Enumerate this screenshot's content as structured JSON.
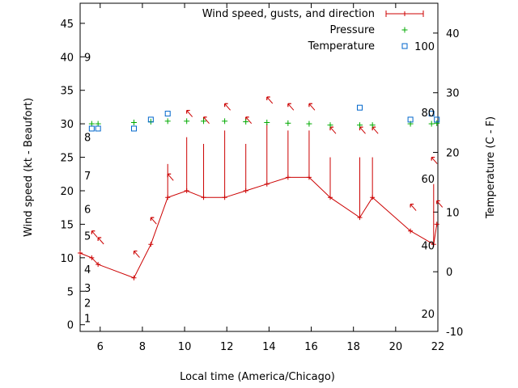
{
  "chart_data": {
    "type": "line",
    "xlabel": "Local time (America/Chicago)",
    "ylabel": "Wind speed (kt - Beaufort)",
    "y2label": "Temperature (C - F)",
    "xlim": [
      5.05,
      22
    ],
    "ylim": [
      -1,
      48
    ],
    "y2lim": [
      -10,
      45
    ],
    "xticks": [
      6,
      8,
      10,
      12,
      14,
      16,
      18,
      20,
      22
    ],
    "yticks": [
      0,
      5,
      10,
      15,
      20,
      25,
      30,
      35,
      40,
      45
    ],
    "y2ticks": [
      -10,
      0,
      10,
      20,
      30,
      40
    ],
    "beaufort_labels": [
      {
        "label": "1",
        "y": 1
      },
      {
        "label": "2",
        "y": 3.3
      },
      {
        "label": "3",
        "y": 5.5
      },
      {
        "label": "4",
        "y": 8.3
      },
      {
        "label": "5",
        "y": 13.3
      },
      {
        "label": "6",
        "y": 17.3
      },
      {
        "label": "7",
        "y": 22.3
      },
      {
        "label": "8",
        "y": 28
      },
      {
        "label": "9",
        "y": 40
      }
    ],
    "fahrenheit_labels": [
      {
        "label": "20",
        "y2": -7
      },
      {
        "label": "40",
        "y2": 4.4
      },
      {
        "label": "60",
        "y2": 15.6
      },
      {
        "label": "80",
        "y2": 26.7
      },
      {
        "label": "100",
        "y2": 37.8
      }
    ],
    "legend_position": "top-right",
    "series": [
      {
        "name": "Wind speed, gusts, and direction",
        "color": "#cc0000",
        "x": [
          5.05,
          5.6,
          5.9,
          7.6,
          8.4,
          9.2,
          10.1,
          10.9,
          11.9,
          12.9,
          13.9,
          14.9,
          15.9,
          16.9,
          18.3,
          18.9,
          20.7,
          21.8,
          21.95
        ],
        "y": [
          10.7,
          10,
          9,
          7,
          12,
          19,
          20,
          19,
          19,
          20,
          21,
          22,
          22,
          19,
          16,
          19,
          14,
          12,
          15
        ],
        "gusts": [
          null,
          null,
          null,
          null,
          null,
          24,
          28,
          27,
          29,
          27,
          30,
          29,
          29,
          25,
          25,
          25,
          null,
          21,
          null
        ],
        "direction_arrows": [
          {
            "x": 5.6,
            "y": 14
          },
          {
            "x": 5.9,
            "y": 13
          },
          {
            "x": 7.6,
            "y": 11
          },
          {
            "x": 8.4,
            "y": 16
          },
          {
            "x": 9.2,
            "y": 22.5
          },
          {
            "x": 10.1,
            "y": 32
          },
          {
            "x": 10.9,
            "y": 31
          },
          {
            "x": 11.9,
            "y": 33
          },
          {
            "x": 12.9,
            "y": 31
          },
          {
            "x": 13.9,
            "y": 34
          },
          {
            "x": 14.9,
            "y": 33
          },
          {
            "x": 15.9,
            "y": 33
          },
          {
            "x": 16.9,
            "y": 29.5
          },
          {
            "x": 18.3,
            "y": 29.5
          },
          {
            "x": 18.9,
            "y": 29.5
          },
          {
            "x": 20.7,
            "y": 18
          },
          {
            "x": 21.7,
            "y": 25
          },
          {
            "x": 21.95,
            "y": 18.5
          }
        ]
      },
      {
        "name": "Pressure",
        "color": "#00aa00",
        "marker": "+",
        "x": [
          5.6,
          5.9,
          7.6,
          8.4,
          9.2,
          10.1,
          10.9,
          11.9,
          12.9,
          13.9,
          14.9,
          15.9,
          16.9,
          18.3,
          18.9,
          20.7,
          21.7,
          21.95
        ],
        "y": [
          30,
          30,
          30.2,
          30.3,
          30.4,
          30.4,
          30.4,
          30.4,
          30.3,
          30.2,
          30.1,
          30,
          29.8,
          29.8,
          29.8,
          30,
          30,
          30.1
        ]
      },
      {
        "name": "Temperature",
        "color": "#0066cc",
        "marker": "square",
        "axis": "y2",
        "x": [
          5.6,
          5.9,
          7.6,
          8.4,
          9.2,
          18.3,
          20.7,
          21.7,
          21.95
        ],
        "y": [
          24,
          24,
          24,
          25.5,
          26.5,
          27.5,
          25.5,
          26.5,
          25.5
        ]
      }
    ]
  }
}
